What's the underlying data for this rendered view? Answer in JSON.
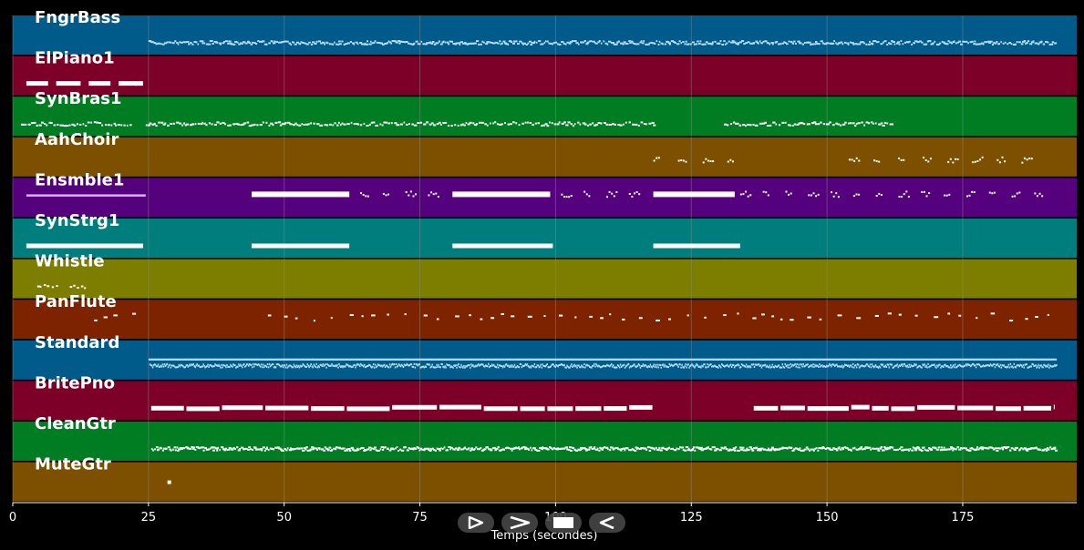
{
  "chart_data": {
    "type": "piano-roll",
    "title": "",
    "xlabel": "Temps (secondes)",
    "ylabel": "",
    "xlim": [
      0,
      196
    ],
    "xticks": [
      0,
      25,
      50,
      75,
      100,
      125,
      150,
      175
    ],
    "xtick_labels": [
      "0",
      "25",
      "50",
      "75",
      "100",
      "125",
      "150",
      "175"
    ],
    "grid": true,
    "tracks": [
      {
        "name": "FngrBass",
        "color": "#005a8a",
        "note_color": "#b4dcf0",
        "style": "ticks",
        "segments": [
          [
            25,
            192
          ]
        ],
        "density": 3.2
      },
      {
        "name": "ElPiano1",
        "color": "#7d0028",
        "note_color": "#ffffff",
        "style": "blocks",
        "segments": [
          [
            2.5,
            6.5
          ],
          [
            8,
            12.5
          ],
          [
            14,
            18
          ],
          [
            19.5,
            23
          ],
          [
            22.5,
            24
          ]
        ],
        "density": 0
      },
      {
        "name": "SynBras1",
        "color": "#007d23",
        "note_color": "#ffffff",
        "style": "ticks",
        "segments": [
          [
            1.5,
            22
          ],
          [
            24.5,
            118
          ],
          [
            131,
            162
          ]
        ],
        "density": 2.2
      },
      {
        "name": "AahChoir",
        "color": "#7d5000",
        "note_color": "#ffffff",
        "style": "clusters",
        "segments": [
          [
            118,
            135
          ],
          [
            154,
            190
          ]
        ],
        "density": 0.22
      },
      {
        "name": "Ensmble1",
        "color": "#55007d",
        "note_color": "#ffffff",
        "style": "mixed",
        "segments": [
          [
            2.5,
            24.5
          ],
          [
            44,
            62
          ],
          [
            81,
            99
          ],
          [
            118,
            133
          ]
        ],
        "clusters": [
          [
            64,
            79
          ],
          [
            101,
            117
          ],
          [
            134,
            192
          ]
        ],
        "density": 0.24
      },
      {
        "name": "SynStrg1",
        "color": "#007d7d",
        "note_color": "#ffffff",
        "style": "blocks",
        "segments": [
          [
            2.5,
            24
          ],
          [
            44,
            62
          ],
          [
            81,
            99.5
          ],
          [
            118,
            134
          ]
        ],
        "density": 0
      },
      {
        "name": "Whistle",
        "color": "#7d7d00",
        "note_color": "#ffffff",
        "style": "ticks",
        "segments": [
          [
            4.5,
            8.5
          ],
          [
            10.5,
            13.5
          ]
        ],
        "density": 1.5
      },
      {
        "name": "PanFlute",
        "color": "#7d2300",
        "note_color": "#ffffff",
        "style": "sparse",
        "segments": [
          [
            15,
            23.5
          ],
          [
            47,
            192
          ]
        ],
        "density": 0.45
      },
      {
        "name": "Standard",
        "color": "#005a8a",
        "note_color": "#b4dcf0",
        "style": "dense",
        "segments": [
          [
            25,
            192
          ]
        ],
        "density": 6
      },
      {
        "name": "BritePno",
        "color": "#7d0028",
        "note_color": "#ffffff",
        "style": "bars",
        "segments": [
          [
            25.5,
            118
          ],
          [
            136.5,
            192
          ]
        ],
        "density": 0
      },
      {
        "name": "CleanGtr",
        "color": "#007d23",
        "note_color": "#ffffff",
        "style": "ticks",
        "segments": [
          [
            25.5,
            192
          ]
        ],
        "density": 4
      },
      {
        "name": "MuteGtr",
        "color": "#7d5000",
        "note_color": "#ffffff",
        "style": "dot",
        "segments": [
          [
            28.5,
            28.9
          ]
        ],
        "density": 0
      }
    ]
  },
  "controls": {
    "play_icon": "play-outline-icon",
    "forward_icon": "fast-forward-icon",
    "stop_icon": "stop-icon",
    "back_icon": "rewind-icon"
  },
  "colors": {
    "background": "#000000",
    "grid": "#8c8c8c",
    "text": "#ffffff",
    "button": "#464646"
  }
}
